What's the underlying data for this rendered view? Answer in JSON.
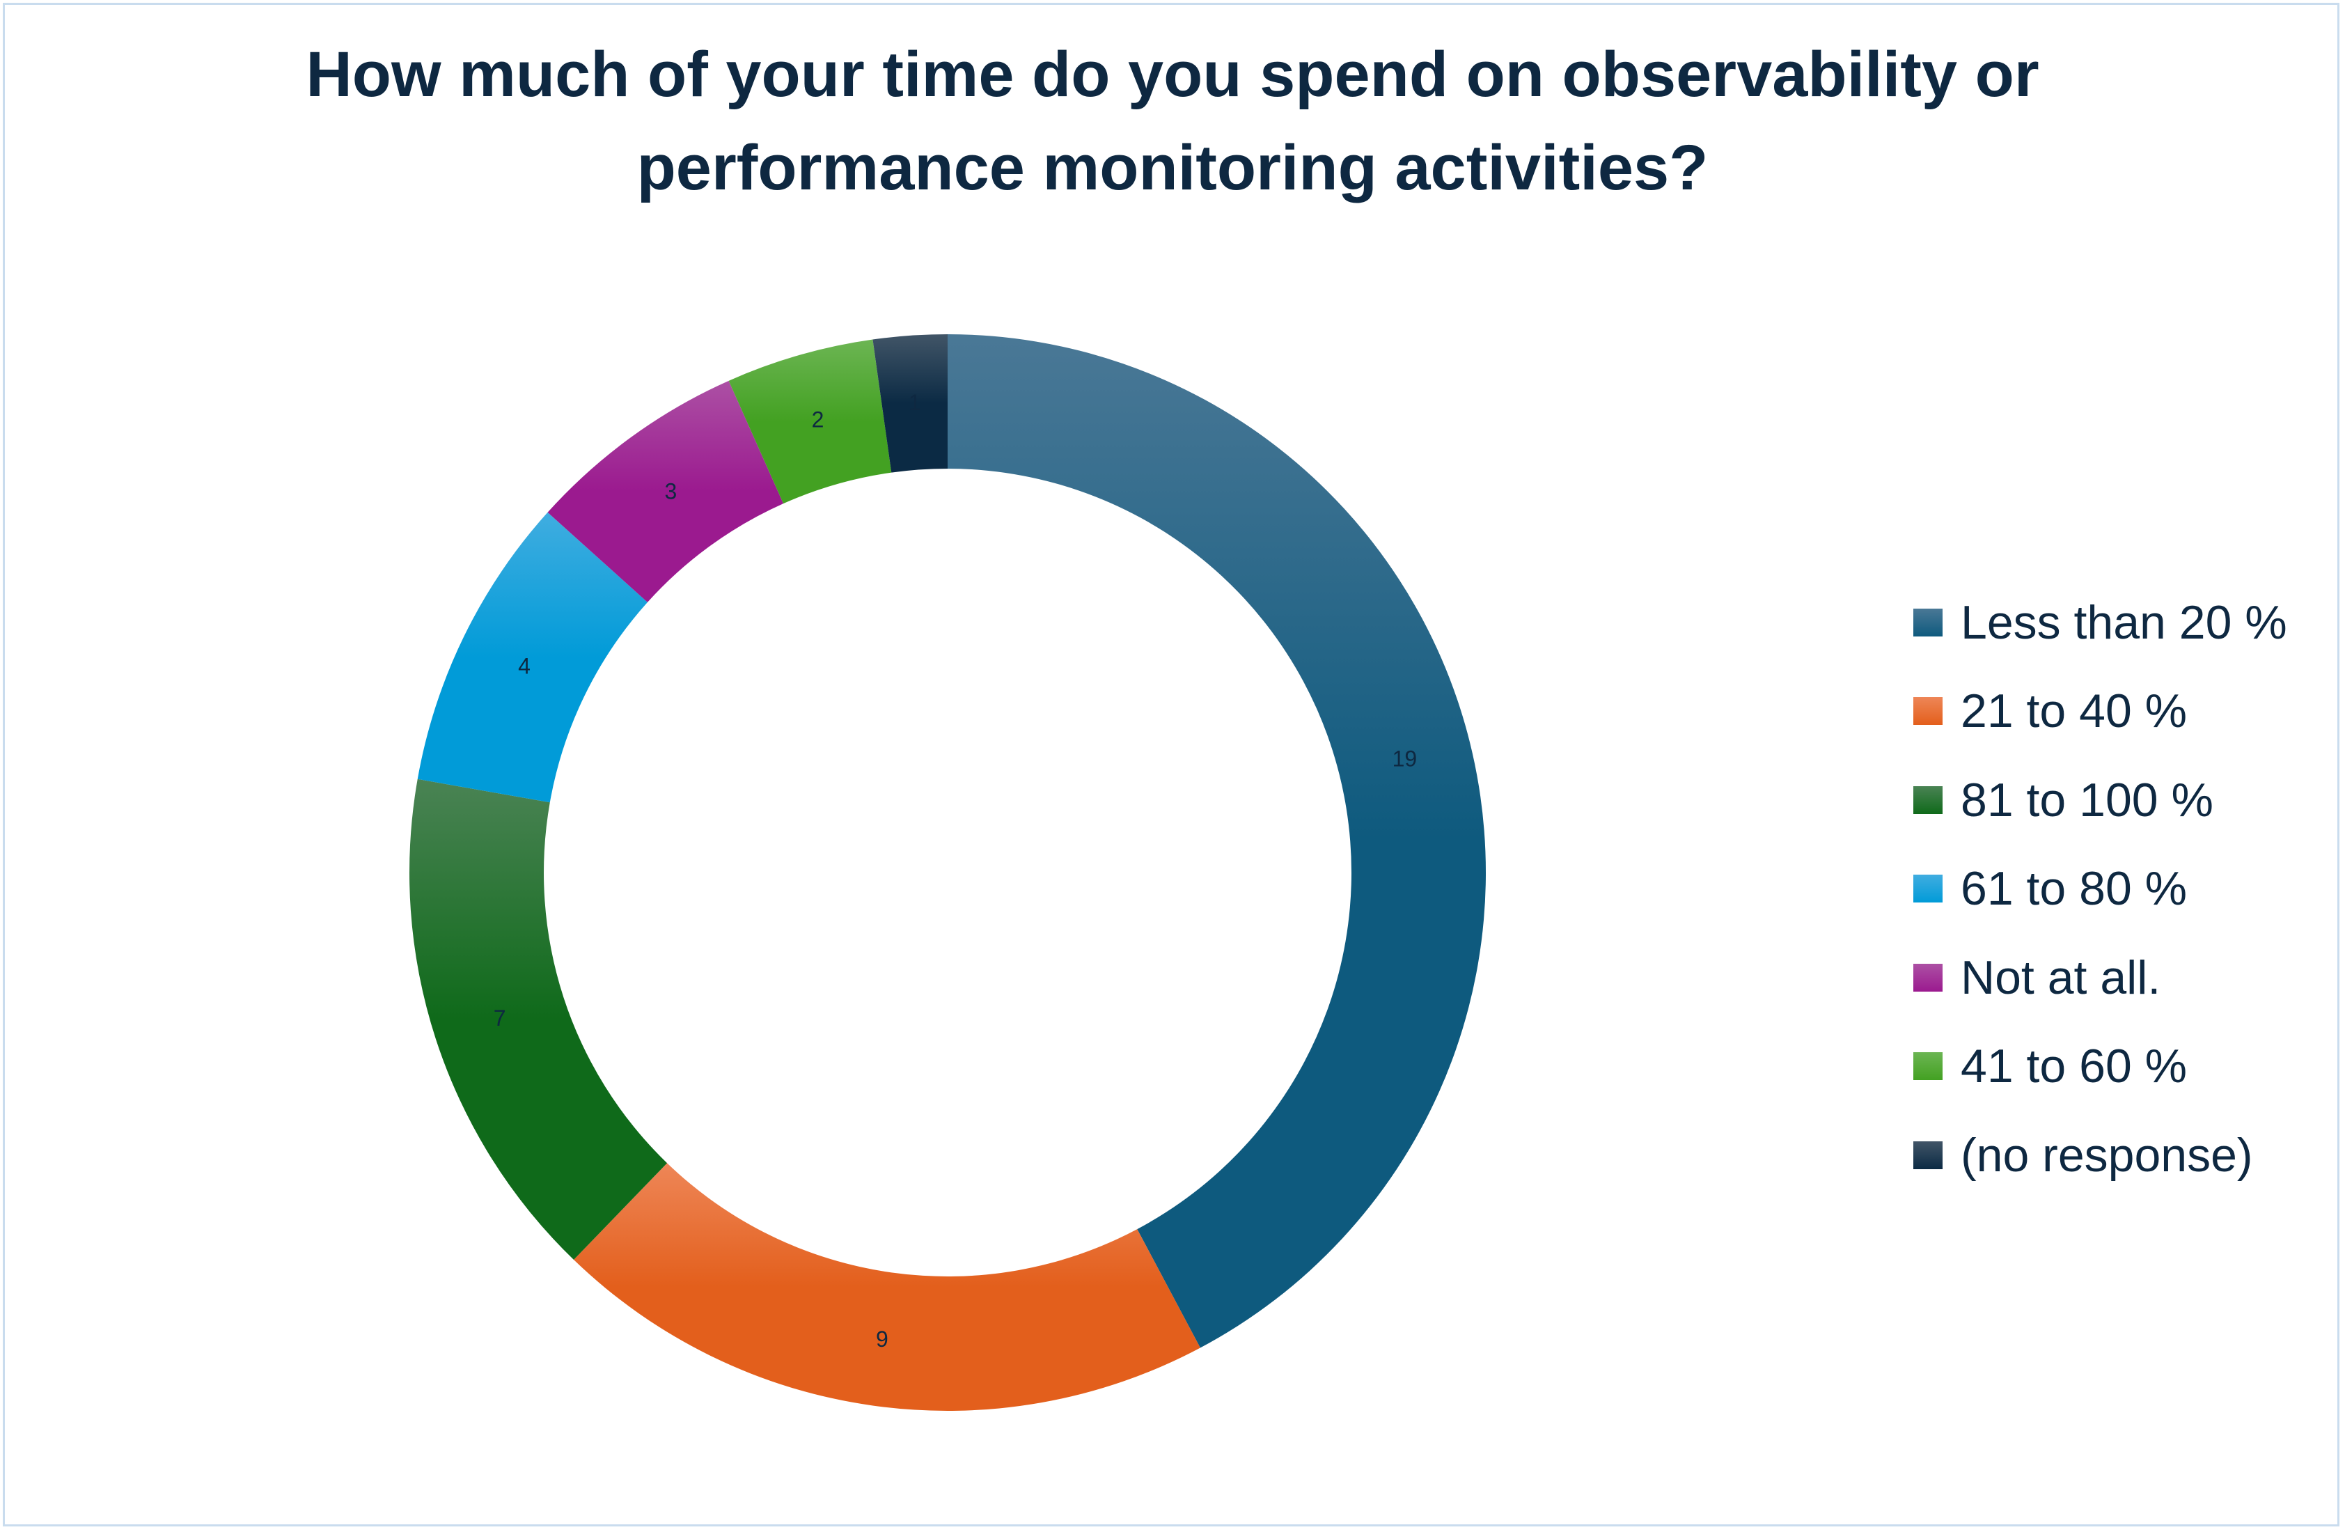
{
  "chart_data": {
    "type": "donut",
    "title": "How much of your time do you spend on observability or performance monitoring activities?",
    "title_lines": [
      "How much of your time do you spend on observability or",
      "performance monitoring activities?"
    ],
    "start_angle": "12 o'clock, clockwise",
    "legend_position": "right",
    "series": [
      {
        "name": "Less than 20 %",
        "value": 19,
        "color": "#0e5a7e",
        "light": "#4a7896"
      },
      {
        "name": "21 to 40 %",
        "value": 9,
        "color": "#e35f1c",
        "light": "#ee8657"
      },
      {
        "name": "81 to 100 %",
        "value": 7,
        "color": "#0f6a1a",
        "light": "#4a8354"
      },
      {
        "name": "61 to 80 %",
        "value": 4,
        "color": "#019bd8",
        "light": "#40ade0"
      },
      {
        "name": "Not at all.",
        "value": 3,
        "color": "#9b1a8f",
        "light": "#ac50a4"
      },
      {
        "name": "41 to 60 %",
        "value": 2,
        "color": "#43a122",
        "light": "#6cb553"
      },
      {
        "name": "(no response)",
        "value": 1,
        "color": "#0b2a44",
        "light": "#415567"
      }
    ]
  }
}
